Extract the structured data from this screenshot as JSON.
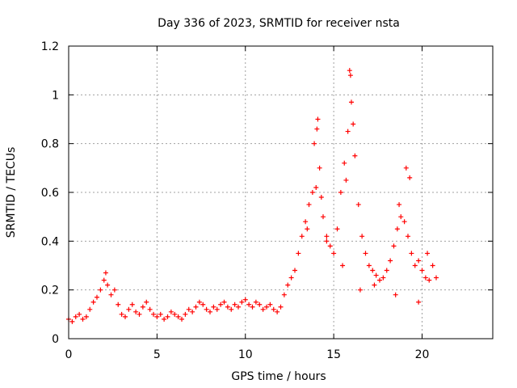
{
  "chart_data": {
    "type": "scatter",
    "title": "Day 336 of 2023, SRMTID for receiver nsta",
    "xlabel": "GPS time / hours",
    "ylabel": "SRMTID / TECUs",
    "xlim": [
      0,
      24
    ],
    "ylim": [
      0,
      1.2
    ],
    "x_ticks": [
      0,
      5,
      10,
      15,
      20
    ],
    "x_tick_labels": [
      "0",
      "5",
      "10",
      "15",
      "20"
    ],
    "y_ticks": [
      0,
      0.2,
      0.4,
      0.6,
      0.8,
      1.0,
      1.2
    ],
    "y_tick_labels": [
      "0",
      "0.2",
      "0.4",
      "0.6",
      "0.8",
      "1",
      "1.2"
    ],
    "grid": true,
    "marker": "plus",
    "color": "#ff0000",
    "series": [
      {
        "name": "nsta",
        "x": [
          0.0,
          0.2,
          0.4,
          0.6,
          0.8,
          1.0,
          1.2,
          1.4,
          1.6,
          1.8,
          2.0,
          2.1,
          2.2,
          2.4,
          2.6,
          2.8,
          3.0,
          3.2,
          3.4,
          3.6,
          3.8,
          4.0,
          4.2,
          4.4,
          4.6,
          4.8,
          5.0,
          5.2,
          5.4,
          5.6,
          5.8,
          6.0,
          6.2,
          6.4,
          6.6,
          6.8,
          7.0,
          7.2,
          7.4,
          7.6,
          7.8,
          8.0,
          8.2,
          8.4,
          8.6,
          8.8,
          9.0,
          9.2,
          9.4,
          9.6,
          9.8,
          10.0,
          10.2,
          10.4,
          10.6,
          10.8,
          11.0,
          11.2,
          11.4,
          11.6,
          11.8,
          12.0,
          12.2,
          12.4,
          12.6,
          12.8,
          13.0,
          13.2,
          13.4,
          13.6,
          13.8,
          14.0,
          14.1,
          14.2,
          14.4,
          14.6,
          14.8,
          15.0,
          15.2,
          15.4,
          15.6,
          15.8,
          15.9,
          16.0,
          16.2,
          16.4,
          16.6,
          16.8,
          17.0,
          17.2,
          17.4,
          17.6,
          17.8,
          18.0,
          18.2,
          18.4,
          18.6,
          18.8,
          19.0,
          19.2,
          19.4,
          19.6,
          19.8,
          20.0,
          20.2,
          20.4,
          20.6,
          20.8,
          13.9,
          14.05,
          14.3,
          15.7,
          15.95,
          16.1,
          19.1,
          19.3,
          18.7,
          13.5,
          14.6,
          15.5,
          16.5,
          17.3,
          18.5,
          19.8,
          20.3
        ],
        "y": [
          0.08,
          0.07,
          0.09,
          0.1,
          0.08,
          0.09,
          0.12,
          0.15,
          0.17,
          0.2,
          0.24,
          0.27,
          0.22,
          0.18,
          0.2,
          0.14,
          0.1,
          0.09,
          0.12,
          0.14,
          0.11,
          0.1,
          0.13,
          0.15,
          0.12,
          0.1,
          0.09,
          0.1,
          0.08,
          0.09,
          0.11,
          0.1,
          0.09,
          0.08,
          0.1,
          0.12,
          0.11,
          0.13,
          0.15,
          0.14,
          0.12,
          0.11,
          0.13,
          0.12,
          0.14,
          0.15,
          0.13,
          0.12,
          0.14,
          0.13,
          0.15,
          0.16,
          0.14,
          0.13,
          0.15,
          0.14,
          0.12,
          0.13,
          0.14,
          0.12,
          0.11,
          0.13,
          0.18,
          0.22,
          0.25,
          0.28,
          0.35,
          0.42,
          0.48,
          0.55,
          0.6,
          0.62,
          0.9,
          0.7,
          0.5,
          0.42,
          0.38,
          0.35,
          0.45,
          0.6,
          0.72,
          0.85,
          1.1,
          0.97,
          0.75,
          0.55,
          0.42,
          0.35,
          0.3,
          0.28,
          0.26,
          0.24,
          0.25,
          0.28,
          0.32,
          0.38,
          0.45,
          0.5,
          0.48,
          0.42,
          0.35,
          0.3,
          0.32,
          0.28,
          0.25,
          0.24,
          0.3,
          0.25,
          0.8,
          0.86,
          0.58,
          0.65,
          1.08,
          0.88,
          0.7,
          0.66,
          0.55,
          0.45,
          0.4,
          0.3,
          0.2,
          0.22,
          0.18,
          0.15,
          0.35
        ]
      }
    ]
  }
}
